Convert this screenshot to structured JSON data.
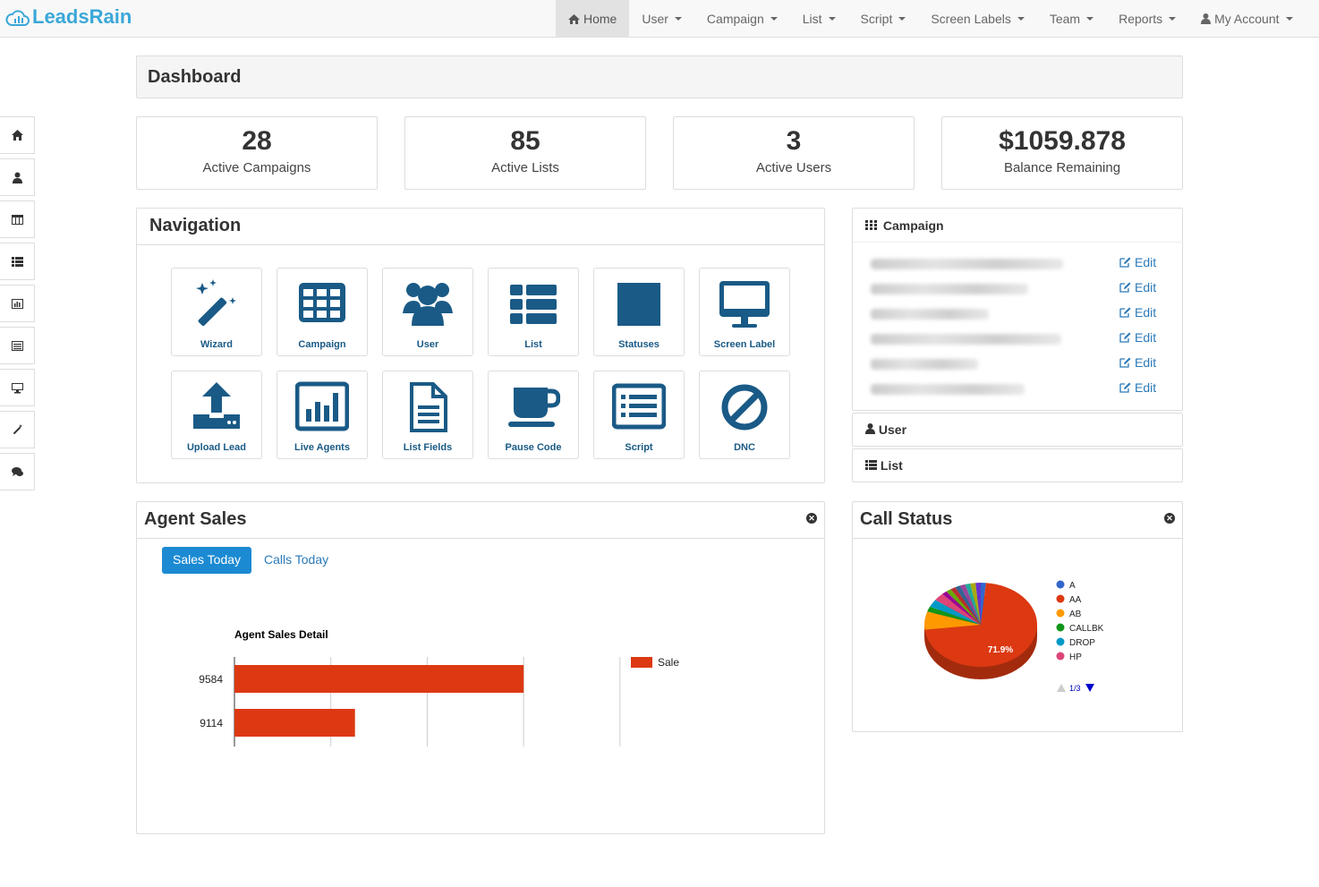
{
  "brand": "LeadsRain",
  "nav": [
    {
      "label": "Home",
      "icon": "home-icon",
      "active": true
    },
    {
      "label": "User",
      "caret": true
    },
    {
      "label": "Campaign",
      "caret": true
    },
    {
      "label": "List",
      "caret": true
    },
    {
      "label": "Script",
      "caret": true
    },
    {
      "label": "Screen Labels",
      "caret": true
    },
    {
      "label": "Team",
      "caret": true
    },
    {
      "label": "Reports",
      "caret": true
    },
    {
      "label": "My Account",
      "icon": "user-icon",
      "caret": true
    }
  ],
  "sidebar": [
    "home-icon",
    "user-icon",
    "table-icon",
    "list-icon",
    "bar-chart-icon",
    "list-alt-icon",
    "monitor-icon",
    "magic-wand-icon",
    "comments-icon"
  ],
  "dashboard": {
    "title": "Dashboard"
  },
  "stats": [
    {
      "value": "28",
      "label": "Active Campaigns"
    },
    {
      "value": "85",
      "label": "Active Lists"
    },
    {
      "value": "3",
      "label": "Active Users"
    },
    {
      "value": "$1059.878",
      "label": "Balance Remaining"
    }
  ],
  "navigation": {
    "title": "Navigation",
    "tiles": [
      {
        "label": "Wizard",
        "icon": "magic-wand-icon"
      },
      {
        "label": "Campaign",
        "icon": "grid-icon"
      },
      {
        "label": "User",
        "icon": "users-icon"
      },
      {
        "label": "List",
        "icon": "list-icon"
      },
      {
        "label": "Statuses",
        "icon": "square-icon"
      },
      {
        "label": "Screen Label",
        "icon": "monitor-icon"
      },
      {
        "label": "Upload Lead",
        "icon": "upload-icon"
      },
      {
        "label": "Live Agents",
        "icon": "bar-chart-icon"
      },
      {
        "label": "List Fields",
        "icon": "file-text-icon"
      },
      {
        "label": "Pause Code",
        "icon": "coffee-icon"
      },
      {
        "label": "Script",
        "icon": "list-alt-icon"
      },
      {
        "label": "DNC",
        "icon": "ban-icon"
      }
    ]
  },
  "campaign_panel": {
    "title": "Campaign",
    "edit_label": "Edit",
    "rows": 6
  },
  "user_panel": {
    "title": "User"
  },
  "list_panel": {
    "title": "List"
  },
  "agent_sales": {
    "title": "Agent Sales",
    "tabs": [
      "Sales Today",
      "Calls Today"
    ]
  },
  "call_status": {
    "title": "Call Status",
    "pager": "1/3"
  },
  "chart_data": [
    {
      "type": "bar",
      "title": "Agent Sales Detail",
      "categories": [
        "9584",
        "9114"
      ],
      "series": [
        {
          "name": "Sale",
          "values": [
            3,
            1.25
          ],
          "color": "#dc3912"
        }
      ],
      "xlim": [
        0,
        4
      ]
    },
    {
      "type": "pie",
      "labels": [
        "A",
        "AA",
        "AB",
        "CALLBK",
        "DROP",
        "HP"
      ],
      "values": [
        1.5,
        71.9,
        7.0,
        2.0,
        3.0,
        3.0
      ],
      "colors": [
        "#3366cc",
        "#dc3912",
        "#ff9900",
        "#109618",
        "#0099c6",
        "#dd4477"
      ],
      "data_label": "71.9%"
    }
  ]
}
